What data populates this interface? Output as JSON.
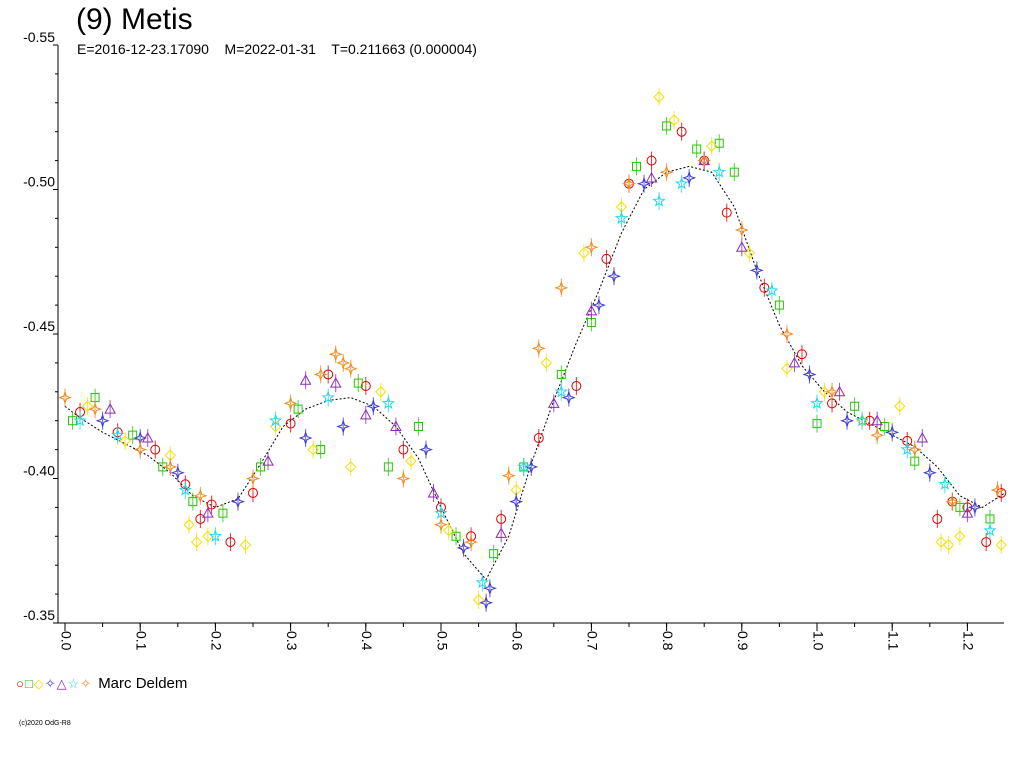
{
  "header": {
    "title": "(9) Metis",
    "subtitle": "E=2016-12-23.17090    M=2022-01-31    T=0.211663 (0.000004)"
  },
  "legend": {
    "symbols": [
      {
        "glyph": "○",
        "color": "#e00000"
      },
      {
        "glyph": "□",
        "color": "#22c800"
      },
      {
        "glyph": "◇",
        "color": "#f2e000"
      },
      {
        "glyph": "✧",
        "color": "#3a3ad0"
      },
      {
        "glyph": "△",
        "color": "#8a2bb8"
      },
      {
        "glyph": "☆",
        "color": "#22d8e6"
      },
      {
        "glyph": "✧",
        "color": "#f08a20"
      }
    ],
    "observer": "Marc Deldem"
  },
  "credit": "(c)2020 OdG-R8",
  "chart_data": {
    "type": "scatter",
    "title": "(9) Metis",
    "subtitle": "E=2016-12-23.17090    M=2022-01-31    T=0.211663 (0.000004)",
    "xlabel": "",
    "ylabel": "",
    "xlim": [
      0.0,
      1.25
    ],
    "ylim": [
      -0.55,
      -0.35
    ],
    "y_inverted": true,
    "x_ticks": [
      "0.0",
      "0.1",
      "0.2",
      "0.3",
      "0.4",
      "0.5",
      "0.6",
      "0.7",
      "0.8",
      "0.9",
      "1.0",
      "1.1",
      "1.2"
    ],
    "y_ticks": [
      "-0.55",
      "-0.50",
      "-0.45",
      "-0.40",
      "-0.35"
    ],
    "grid": false,
    "legend_position": "bottom-left",
    "fit_curve": {
      "x": [
        0.0,
        0.02,
        0.05,
        0.08,
        0.11,
        0.14,
        0.17,
        0.2,
        0.23,
        0.26,
        0.29,
        0.32,
        0.35,
        0.38,
        0.41,
        0.44,
        0.47,
        0.5,
        0.53,
        0.56,
        0.59,
        0.62,
        0.65,
        0.68,
        0.71,
        0.74,
        0.77,
        0.8,
        0.83,
        0.86,
        0.89,
        0.92,
        0.95,
        0.98,
        1.01,
        1.04,
        1.07,
        1.1,
        1.13,
        1.16,
        1.19,
        1.22,
        1.25
      ],
      "y": [
        -0.425,
        -0.421,
        -0.416,
        -0.412,
        -0.408,
        -0.402,
        -0.394,
        -0.39,
        -0.393,
        -0.405,
        -0.418,
        -0.424,
        -0.427,
        -0.428,
        -0.425,
        -0.418,
        -0.407,
        -0.39,
        -0.374,
        -0.365,
        -0.38,
        -0.405,
        -0.427,
        -0.447,
        -0.465,
        -0.485,
        -0.5,
        -0.506,
        -0.508,
        -0.506,
        -0.494,
        -0.472,
        -0.453,
        -0.439,
        -0.43,
        -0.423,
        -0.419,
        -0.415,
        -0.411,
        -0.404,
        -0.394,
        -0.39,
        -0.395
      ]
    },
    "series": [
      {
        "marker": "circle",
        "color": "#e00000",
        "x": [
          0.02,
          0.07,
          0.12,
          0.16,
          0.18,
          0.195,
          0.22,
          0.25,
          0.3,
          0.35,
          0.4,
          0.45,
          0.5,
          0.54,
          0.58,
          0.63,
          0.68,
          0.72,
          0.75,
          0.78,
          0.82,
          0.85,
          0.88,
          0.93,
          0.98,
          1.02,
          1.07,
          1.12,
          1.16,
          1.18,
          1.2,
          1.225,
          1.245
        ],
        "y": [
          -0.423,
          -0.416,
          -0.41,
          -0.398,
          -0.386,
          -0.391,
          -0.378,
          -0.395,
          -0.419,
          -0.436,
          -0.432,
          -0.41,
          -0.39,
          -0.38,
          -0.386,
          -0.414,
          -0.432,
          -0.476,
          -0.502,
          -0.51,
          -0.52,
          -0.51,
          -0.492,
          -0.466,
          -0.443,
          -0.426,
          -0.42,
          -0.413,
          -0.386,
          -0.392,
          -0.39,
          -0.378,
          -0.395
        ]
      },
      {
        "marker": "square",
        "color": "#22c800",
        "x": [
          0.01,
          0.04,
          0.09,
          0.13,
          0.17,
          0.21,
          0.26,
          0.31,
          0.34,
          0.39,
          0.43,
          0.47,
          0.52,
          0.57,
          0.61,
          0.66,
          0.7,
          0.76,
          0.8,
          0.84,
          0.87,
          0.89,
          0.95,
          1.0,
          1.05,
          1.09,
          1.13,
          1.19,
          1.23
        ],
        "y": [
          -0.42,
          -0.428,
          -0.415,
          -0.404,
          -0.392,
          -0.388,
          -0.404,
          -0.424,
          -0.41,
          -0.433,
          -0.404,
          -0.418,
          -0.38,
          -0.374,
          -0.404,
          -0.436,
          -0.454,
          -0.508,
          -0.522,
          -0.514,
          -0.516,
          -0.506,
          -0.46,
          -0.419,
          -0.425,
          -0.418,
          -0.406,
          -0.39,
          -0.386
        ]
      },
      {
        "marker": "diamond",
        "color": "#f2e000",
        "x": [
          0.03,
          0.08,
          0.14,
          0.165,
          0.175,
          0.19,
          0.24,
          0.28,
          0.33,
          0.38,
          0.42,
          0.46,
          0.51,
          0.55,
          0.6,
          0.64,
          0.69,
          0.74,
          0.79,
          0.81,
          0.86,
          0.91,
          0.96,
          1.01,
          1.06,
          1.11,
          1.165,
          1.175,
          1.19,
          1.245
        ],
        "y": [
          -0.425,
          -0.413,
          -0.408,
          -0.384,
          -0.378,
          -0.38,
          -0.377,
          -0.418,
          -0.41,
          -0.404,
          -0.43,
          -0.406,
          -0.382,
          -0.358,
          -0.396,
          -0.44,
          -0.478,
          -0.494,
          -0.532,
          -0.524,
          -0.515,
          -0.478,
          -0.438,
          -0.43,
          -0.42,
          -0.425,
          -0.378,
          -0.377,
          -0.38,
          -0.377
        ]
      },
      {
        "marker": "star4",
        "color": "#3a3ad0",
        "x": [
          0.05,
          0.1,
          0.15,
          0.23,
          0.32,
          0.37,
          0.41,
          0.48,
          0.53,
          0.56,
          0.565,
          0.6,
          0.62,
          0.67,
          0.71,
          0.73,
          0.77,
          0.83,
          0.92,
          0.99,
          1.04,
          1.1,
          1.15,
          1.21
        ],
        "y": [
          -0.42,
          -0.414,
          -0.402,
          -0.392,
          -0.414,
          -0.418,
          -0.425,
          -0.41,
          -0.376,
          -0.357,
          -0.362,
          -0.392,
          -0.404,
          -0.428,
          -0.46,
          -0.47,
          -0.502,
          -0.504,
          -0.472,
          -0.436,
          -0.42,
          -0.416,
          -0.402,
          -0.39
        ]
      },
      {
        "marker": "triangle",
        "color": "#8a2bb8",
        "x": [
          0.06,
          0.11,
          0.19,
          0.27,
          0.32,
          0.36,
          0.4,
          0.44,
          0.49,
          0.58,
          0.65,
          0.7,
          0.78,
          0.85,
          0.9,
          0.97,
          1.03,
          1.08,
          1.14,
          1.2
        ],
        "y": [
          -0.424,
          -0.414,
          -0.388,
          -0.406,
          -0.434,
          -0.433,
          -0.422,
          -0.418,
          -0.395,
          -0.381,
          -0.426,
          -0.458,
          -0.504,
          -0.51,
          -0.48,
          -0.44,
          -0.43,
          -0.42,
          -0.414,
          -0.388
        ]
      },
      {
        "marker": "star5",
        "color": "#22d8e6",
        "x": [
          0.02,
          0.07,
          0.16,
          0.2,
          0.28,
          0.35,
          0.43,
          0.5,
          0.555,
          0.61,
          0.66,
          0.74,
          0.79,
          0.82,
          0.87,
          0.94,
          1.0,
          1.06,
          1.12,
          1.17,
          1.23
        ],
        "y": [
          -0.42,
          -0.415,
          -0.396,
          -0.38,
          -0.42,
          -0.428,
          -0.426,
          -0.388,
          -0.364,
          -0.404,
          -0.43,
          -0.49,
          -0.496,
          -0.502,
          -0.506,
          -0.465,
          -0.426,
          -0.42,
          -0.41,
          -0.398,
          -0.382
        ]
      },
      {
        "marker": "star4",
        "color": "#f08a20",
        "x": [
          0.0,
          0.04,
          0.1,
          0.14,
          0.18,
          0.25,
          0.3,
          0.34,
          0.36,
          0.37,
          0.38,
          0.45,
          0.5,
          0.54,
          0.59,
          0.63,
          0.66,
          0.7,
          0.75,
          0.8,
          0.85,
          0.9,
          0.96,
          1.02,
          1.08,
          1.13,
          1.18,
          1.24
        ],
        "y": [
          -0.428,
          -0.424,
          -0.41,
          -0.404,
          -0.394,
          -0.4,
          -0.426,
          -0.436,
          -0.443,
          -0.44,
          -0.438,
          -0.4,
          -0.384,
          -0.378,
          -0.401,
          -0.445,
          -0.466,
          -0.48,
          -0.502,
          -0.506,
          -0.51,
          -0.486,
          -0.45,
          -0.43,
          -0.415,
          -0.41,
          -0.392,
          -0.396
        ]
      }
    ]
  }
}
